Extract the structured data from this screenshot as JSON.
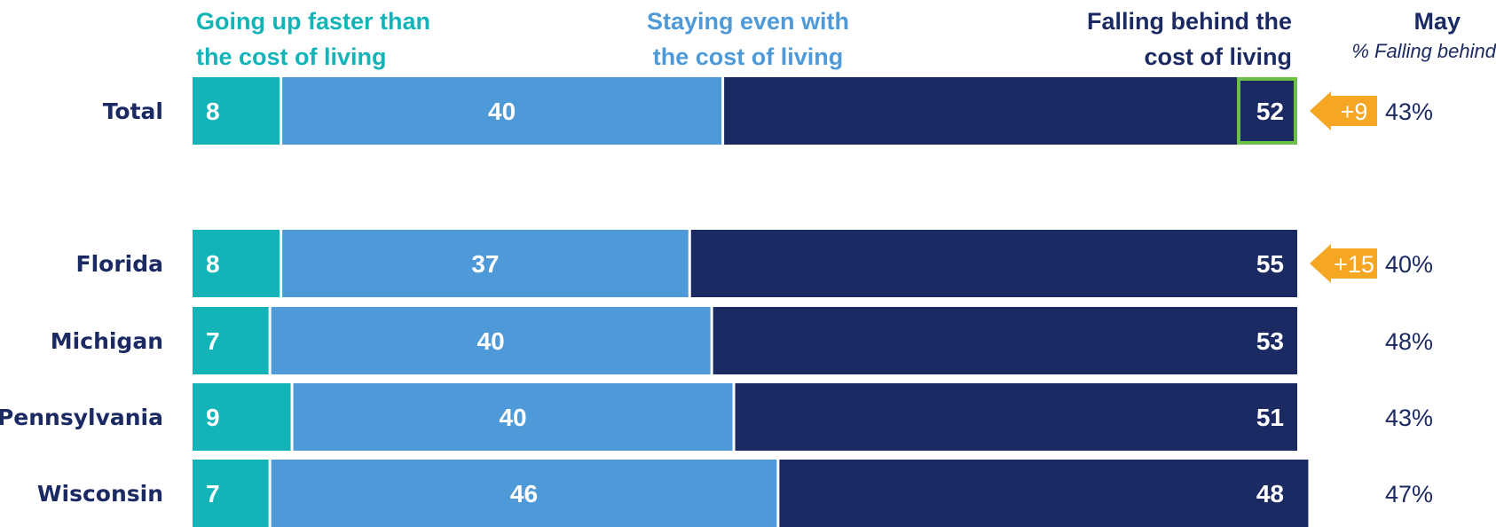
{
  "legend": {
    "going_up": [
      "Going up faster than",
      "the cost of living"
    ],
    "staying_even": [
      "Staying even with",
      "the cost of living"
    ],
    "falling_behind": [
      "Falling behind the",
      "cost of living"
    ],
    "may_title": "May",
    "may_subtitle": "% Falling behind"
  },
  "colors": {
    "going_up": "#12b4b8",
    "staying_even": "#4e9ad8",
    "falling_behind": "#1b2a63",
    "change_arrow": "#f5a623",
    "highlight_border": "#6cbf47"
  },
  "chart_data": {
    "type": "bar",
    "orientation": "horizontal",
    "stacked": true,
    "categories": [
      "Total",
      "Florida",
      "Michigan",
      "Pennsylvania",
      "Wisconsin"
    ],
    "series": [
      {
        "name": "Going up faster than the cost of living",
        "values": [
          8,
          8,
          7,
          9,
          7
        ]
      },
      {
        "name": "Staying even with the cost of living",
        "values": [
          40,
          37,
          40,
          40,
          46
        ]
      },
      {
        "name": "Falling behind the cost of living",
        "values": [
          52,
          55,
          53,
          51,
          48
        ]
      }
    ],
    "may_falling_behind": [
      "43%",
      "40%",
      "48%",
      "43%",
      "47%"
    ],
    "change": [
      "+9",
      "+15",
      null,
      null,
      null
    ],
    "highlighted": [
      true,
      false,
      false,
      false,
      false
    ],
    "xlim": [
      0,
      100
    ]
  }
}
